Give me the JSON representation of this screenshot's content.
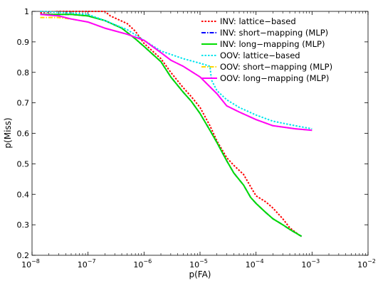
{
  "chart_data": {
    "type": "line",
    "title": "",
    "xlabel": "p(FA)",
    "ylabel": "p(Miss)",
    "xscale": "log",
    "xlim": [
      1e-08,
      0.01
    ],
    "ylim": [
      0.2,
      1
    ],
    "grid": false,
    "legend_position": "top-right",
    "x_ticks": [
      {
        "value": 1e-08,
        "base": "10",
        "exp": "−8"
      },
      {
        "value": 1e-07,
        "base": "10",
        "exp": "−7"
      },
      {
        "value": 1e-06,
        "base": "10",
        "exp": "−6"
      },
      {
        "value": 1e-05,
        "base": "10",
        "exp": "−5"
      },
      {
        "value": 0.0001,
        "base": "10",
        "exp": "−4"
      },
      {
        "value": 0.001,
        "base": "10",
        "exp": "−3"
      },
      {
        "value": 0.01,
        "base": "10",
        "exp": "−2"
      }
    ],
    "y_ticks": [
      {
        "value": 0.2,
        "label": "0.2"
      },
      {
        "value": 0.3,
        "label": "0.3"
      },
      {
        "value": 0.4,
        "label": "0.4"
      },
      {
        "value": 0.5,
        "label": "0.5"
      },
      {
        "value": 0.6,
        "label": "0.6"
      },
      {
        "value": 0.7,
        "label": "0.7"
      },
      {
        "value": 0.8,
        "label": "0.8"
      },
      {
        "value": 0.9,
        "label": "0.9"
      },
      {
        "value": 1,
        "label": "1"
      }
    ],
    "series": [
      {
        "name": "INV: lattice−based",
        "color": "#ff0000",
        "dash": "dotted",
        "points": [
          [
            1.4e-08,
            0.995
          ],
          [
            3e-08,
            1.0
          ],
          [
            1e-07,
            1.0
          ],
          [
            2e-07,
            1.0
          ],
          [
            2.5e-07,
            0.985
          ],
          [
            5e-07,
            0.96
          ],
          [
            7e-07,
            0.935
          ],
          [
            1e-06,
            0.895
          ],
          [
            2e-06,
            0.845
          ],
          [
            3e-06,
            0.8
          ],
          [
            5e-06,
            0.75
          ],
          [
            7e-06,
            0.72
          ],
          [
            1e-05,
            0.685
          ],
          [
            1.5e-05,
            0.625
          ],
          [
            2e-05,
            0.575
          ],
          [
            3e-05,
            0.52
          ],
          [
            4e-05,
            0.495
          ],
          [
            6e-05,
            0.465
          ],
          [
            8e-05,
            0.425
          ],
          [
            0.0001,
            0.395
          ],
          [
            0.00015,
            0.375
          ],
          [
            0.0002,
            0.355
          ],
          [
            0.0003,
            0.32
          ],
          [
            0.0004,
            0.29
          ],
          [
            0.0006,
            0.265
          ],
          [
            0.00065,
            0.262
          ]
        ]
      },
      {
        "name": "INV: short−mapping (MLP)",
        "color": "#0000ff",
        "dash": "dashdot",
        "points": [
          [
            1.4e-08,
            0.99
          ],
          [
            5e-08,
            0.99
          ],
          [
            1e-07,
            0.985
          ],
          [
            2e-07,
            0.97
          ],
          [
            4e-07,
            0.945
          ],
          [
            7e-07,
            0.91
          ],
          [
            1e-06,
            0.885
          ],
          [
            2e-06,
            0.835
          ],
          [
            3e-06,
            0.785
          ],
          [
            5e-06,
            0.735
          ],
          [
            7e-06,
            0.705
          ],
          [
            1e-05,
            0.665
          ],
          [
            1.5e-05,
            0.61
          ],
          [
            2e-05,
            0.57
          ],
          [
            3e-05,
            0.51
          ],
          [
            4e-05,
            0.47
          ],
          [
            6e-05,
            0.43
          ],
          [
            8e-05,
            0.39
          ],
          [
            0.0001,
            0.37
          ],
          [
            0.00015,
            0.34
          ],
          [
            0.0002,
            0.32
          ],
          [
            0.0003,
            0.3
          ],
          [
            0.0004,
            0.285
          ],
          [
            0.00065,
            0.262
          ]
        ]
      },
      {
        "name": "INV: long−mapping (MLP)",
        "color": "#00dd00",
        "dash": "solid",
        "points": [
          [
            1.4e-08,
            0.99
          ],
          [
            5e-08,
            0.99
          ],
          [
            1e-07,
            0.985
          ],
          [
            2e-07,
            0.97
          ],
          [
            4e-07,
            0.945
          ],
          [
            7e-07,
            0.91
          ],
          [
            1e-06,
            0.885
          ],
          [
            2e-06,
            0.835
          ],
          [
            3e-06,
            0.785
          ],
          [
            5e-06,
            0.735
          ],
          [
            7e-06,
            0.705
          ],
          [
            1e-05,
            0.665
          ],
          [
            1.5e-05,
            0.61
          ],
          [
            2e-05,
            0.57
          ],
          [
            3e-05,
            0.51
          ],
          [
            4e-05,
            0.47
          ],
          [
            6e-05,
            0.43
          ],
          [
            8e-05,
            0.39
          ],
          [
            0.0001,
            0.37
          ],
          [
            0.00015,
            0.34
          ],
          [
            0.0002,
            0.32
          ],
          [
            0.0003,
            0.3
          ],
          [
            0.0004,
            0.285
          ],
          [
            0.00065,
            0.262
          ]
        ]
      },
      {
        "name": "OOV: lattice−based",
        "color": "#00e5ee",
        "dash": "dotted",
        "points": [
          [
            1.4e-08,
            1.0
          ],
          [
            5e-08,
            0.995
          ],
          [
            1e-07,
            0.99
          ],
          [
            2e-07,
            0.97
          ],
          [
            5e-07,
            0.94
          ],
          [
            1e-06,
            0.905
          ],
          [
            2e-06,
            0.87
          ],
          [
            5e-06,
            0.845
          ],
          [
            1e-05,
            0.83
          ],
          [
            1.5e-05,
            0.82
          ],
          [
            1.6e-05,
            0.775
          ],
          [
            2e-05,
            0.74
          ],
          [
            3e-05,
            0.71
          ],
          [
            5e-05,
            0.685
          ],
          [
            0.0001,
            0.66
          ],
          [
            0.0002,
            0.64
          ],
          [
            0.0005,
            0.625
          ],
          [
            0.001,
            0.615
          ]
        ]
      },
      {
        "name": "OOV: short−mapping (MLP)",
        "color": "#ffd700",
        "dash": "dashdot",
        "points": [
          [
            1.4e-08,
            0.98
          ],
          [
            3e-08,
            0.98
          ],
          [
            5e-08,
            0.975
          ],
          [
            1e-07,
            0.965
          ],
          [
            2e-07,
            0.945
          ],
          [
            5e-07,
            0.925
          ],
          [
            1e-06,
            0.905
          ],
          [
            2e-06,
            0.865
          ],
          [
            3e-06,
            0.84
          ],
          [
            5e-06,
            0.82
          ],
          [
            1e-05,
            0.785
          ],
          [
            2e-05,
            0.73
          ],
          [
            3e-05,
            0.69
          ],
          [
            5e-05,
            0.67
          ],
          [
            0.0001,
            0.645
          ],
          [
            0.0002,
            0.625
          ],
          [
            0.0005,
            0.615
          ],
          [
            0.001,
            0.61
          ]
        ]
      },
      {
        "name": "OOV: long−mapping (MLP)",
        "color": "#ff00ff",
        "dash": "solid",
        "points": [
          [
            1.4e-08,
            0.99
          ],
          [
            3e-08,
            0.985
          ],
          [
            5e-08,
            0.975
          ],
          [
            1e-07,
            0.965
          ],
          [
            2e-07,
            0.945
          ],
          [
            5e-07,
            0.925
          ],
          [
            1e-06,
            0.905
          ],
          [
            2e-06,
            0.865
          ],
          [
            3e-06,
            0.84
          ],
          [
            5e-06,
            0.82
          ],
          [
            1e-05,
            0.785
          ],
          [
            2e-05,
            0.73
          ],
          [
            3e-05,
            0.69
          ],
          [
            5e-05,
            0.67
          ],
          [
            0.0001,
            0.645
          ],
          [
            0.0002,
            0.625
          ],
          [
            0.0005,
            0.615
          ],
          [
            0.001,
            0.61
          ]
        ]
      }
    ]
  }
}
